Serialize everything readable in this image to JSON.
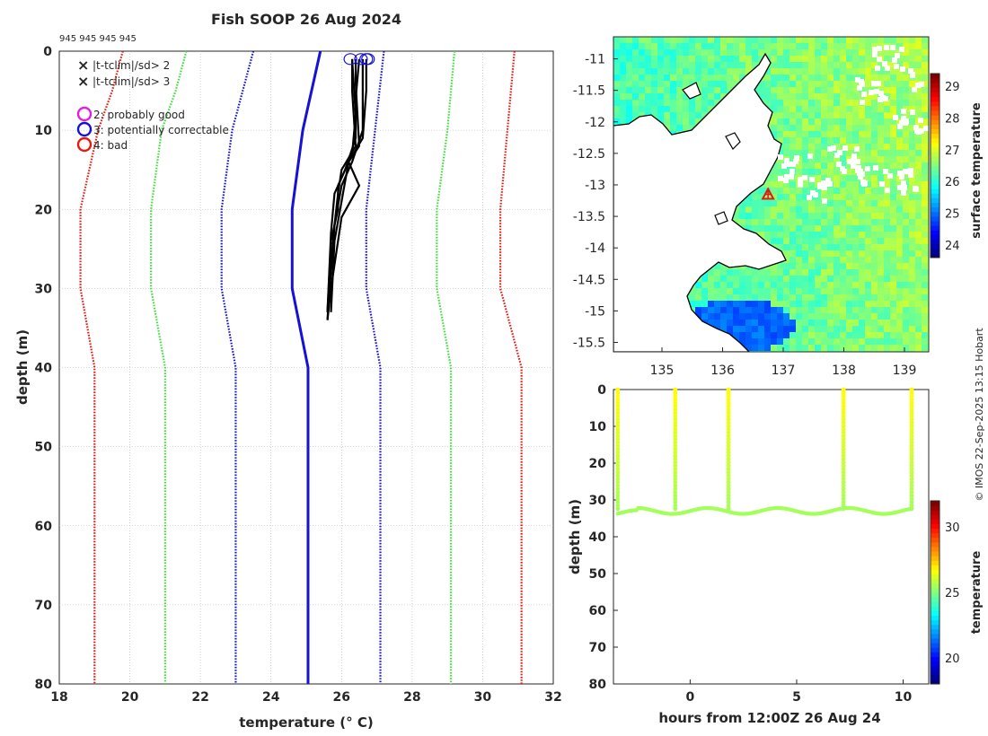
{
  "title": "Fish SOOP 26 Aug 2024",
  "cruise_ids": "945 945 945 945",
  "copyright": "© IMOS 22-Sep-2025 13:15 Hobart",
  "colors": {
    "red": "#e8170f",
    "green": "#3ee03a",
    "blue": "#1512d6",
    "black": "#000000",
    "magenta": "#e020e0"
  },
  "legend": {
    "markers": [
      {
        "symbol": "×",
        "label": "|t-tclim|/sd> 2",
        "color": "#3ee03a"
      },
      {
        "symbol": "×",
        "label": "|t-tclim|/sd> 3",
        "color": "#e8170f"
      }
    ],
    "flags": [
      {
        "label": "2: probably good",
        "color": "#e020e0"
      },
      {
        "label": "3: potentially correctable",
        "color": "#1512d6"
      },
      {
        "label": "4: bad",
        "color": "#e8170f"
      }
    ]
  },
  "chart_data": [
    {
      "type": "line",
      "name": "profile",
      "xlabel": "temperature (° C)",
      "ylabel": "depth (m)",
      "xlim": [
        18,
        32
      ],
      "ylim": [
        80,
        0
      ],
      "xticks": [
        18,
        20,
        22,
        24,
        26,
        28,
        30,
        32
      ],
      "yticks": [
        0,
        10,
        20,
        30,
        40,
        50,
        60,
        70,
        80
      ],
      "grid": true,
      "climatology": [
        {
          "name": "mean",
          "color": "#1512d6",
          "style": "solid",
          "points": [
            [
              25.4,
              0
            ],
            [
              24.9,
              10
            ],
            [
              24.6,
              20
            ],
            [
              24.6,
              30
            ],
            [
              25.05,
              40
            ],
            [
              25.05,
              80
            ]
          ]
        },
        {
          "name": "mean-1sd",
          "color": "#1512d6",
          "style": "dotted",
          "points": [
            [
              23.5,
              0
            ],
            [
              23.2,
              5
            ],
            [
              22.9,
              10
            ],
            [
              22.6,
              20
            ],
            [
              22.6,
              30
            ],
            [
              23.0,
              40
            ],
            [
              23.0,
              80
            ]
          ]
        },
        {
          "name": "mean+1sd",
          "color": "#1512d6",
          "style": "dotted",
          "points": [
            [
              27.2,
              0
            ],
            [
              27.0,
              8
            ],
            [
              26.7,
              20
            ],
            [
              26.7,
              30
            ],
            [
              27.1,
              40
            ],
            [
              27.1,
              80
            ]
          ]
        },
        {
          "name": "mean-2sd",
          "color": "#3ee03a",
          "style": "dotted",
          "points": [
            [
              21.6,
              0
            ],
            [
              21.3,
              5
            ],
            [
              20.9,
              10
            ],
            [
              20.6,
              20
            ],
            [
              20.6,
              30
            ],
            [
              21.0,
              40
            ],
            [
              21.0,
              80
            ]
          ]
        },
        {
          "name": "mean+2sd",
          "color": "#3ee03a",
          "style": "dotted",
          "points": [
            [
              29.2,
              0
            ],
            [
              29.0,
              10
            ],
            [
              28.7,
              20
            ],
            [
              28.7,
              30
            ],
            [
              29.1,
              40
            ],
            [
              29.1,
              80
            ]
          ]
        },
        {
          "name": "mean-3sd",
          "color": "#e8170f",
          "style": "dotted",
          "points": [
            [
              19.8,
              0
            ],
            [
              19.5,
              5
            ],
            [
              19.1,
              10
            ],
            [
              18.6,
              20
            ],
            [
              18.6,
              30
            ],
            [
              19.0,
              40
            ],
            [
              19.0,
              80
            ]
          ]
        },
        {
          "name": "mean+3sd",
          "color": "#e8170f",
          "style": "dotted",
          "points": [
            [
              30.9,
              0
            ],
            [
              30.7,
              10
            ],
            [
              30.5,
              20
            ],
            [
              30.5,
              30
            ],
            [
              31.1,
              40
            ],
            [
              31.1,
              80
            ]
          ]
        }
      ],
      "profiles": [
        {
          "points": [
            [
              26.3,
              1
            ],
            [
              26.3,
              5
            ],
            [
              26.4,
              12
            ],
            [
              26.0,
              15
            ],
            [
              25.9,
              18
            ],
            [
              25.8,
              22
            ],
            [
              25.7,
              27
            ],
            [
              25.6,
              34
            ]
          ]
        },
        {
          "points": [
            [
              26.5,
              1
            ],
            [
              26.4,
              6
            ],
            [
              26.4,
              11
            ],
            [
              26.1,
              15
            ],
            [
              25.8,
              18
            ],
            [
              25.7,
              23
            ],
            [
              25.6,
              33
            ]
          ]
        },
        {
          "points": [
            [
              26.6,
              1
            ],
            [
              26.6,
              6
            ],
            [
              26.6,
              10
            ],
            [
              26.3,
              14
            ],
            [
              26.0,
              17
            ],
            [
              25.8,
              22
            ],
            [
              25.7,
              28
            ],
            [
              25.6,
              33
            ]
          ]
        },
        {
          "points": [
            [
              26.7,
              1
            ],
            [
              26.7,
              5
            ],
            [
              26.6,
              11
            ],
            [
              26.2,
              14
            ],
            [
              26.0,
              19
            ],
            [
              25.8,
              24
            ],
            [
              25.7,
              33
            ]
          ]
        },
        {
          "points": [
            [
              26.3,
              1
            ],
            [
              26.4,
              8
            ],
            [
              26.3,
              13
            ],
            [
              25.9,
              17
            ],
            [
              25.9,
              20
            ],
            [
              25.7,
              24
            ],
            [
              25.6,
              33
            ]
          ]
        },
        {
          "points": [
            [
              26.4,
              1
            ],
            [
              26.4,
              4
            ],
            [
              26.5,
              12
            ],
            [
              26.2,
              14
            ],
            [
              26.5,
              17
            ],
            [
              26.0,
              21
            ],
            [
              25.7,
              30
            ],
            [
              25.6,
              34
            ]
          ]
        }
      ],
      "flag_markers": [
        {
          "x": 26.25,
          "y": 1,
          "flag": 3
        },
        {
          "x": 26.55,
          "y": 1,
          "flag": 3
        },
        {
          "x": 26.7,
          "y": 1,
          "flag": 3
        },
        {
          "x": 26.75,
          "y": 1,
          "flag": 3
        }
      ]
    },
    {
      "type": "heatmap",
      "name": "sst_map",
      "xticks": [
        135,
        136,
        137,
        138,
        139
      ],
      "yticks": [
        -11,
        -11.5,
        -12,
        -12.5,
        -13,
        -13.5,
        -14,
        -14.5,
        -15,
        -15.5
      ],
      "xlim": [
        134.2,
        139.4
      ],
      "ylim": [
        -15.65,
        -10.65
      ],
      "station": {
        "lon": 136.75,
        "lat": -13.15
      },
      "colorbar": {
        "label": "surface temperature",
        "range": [
          23.6,
          29.4
        ],
        "ticks": [
          24,
          25,
          26,
          27,
          28,
          29
        ]
      }
    },
    {
      "type": "scatter",
      "name": "depth_time",
      "xlabel": "hours from 12:00Z 26 Aug 24",
      "ylabel": "depth (m)",
      "xlim": [
        -3.6,
        11.2
      ],
      "ylim": [
        80,
        0
      ],
      "xticks": [
        0,
        5,
        10
      ],
      "yticks": [
        0,
        10,
        20,
        30,
        40,
        50,
        60,
        70,
        80
      ],
      "casts": [
        -3.4,
        -0.7,
        1.8,
        7.2,
        10.4
      ],
      "bottom_depth": 33,
      "surface_temperature": 26.8,
      "bottom_temperature": 25.5,
      "colorbar": {
        "label": "temperature",
        "range": [
          18,
          32
        ],
        "ticks": [
          20,
          25,
          30
        ]
      }
    }
  ]
}
